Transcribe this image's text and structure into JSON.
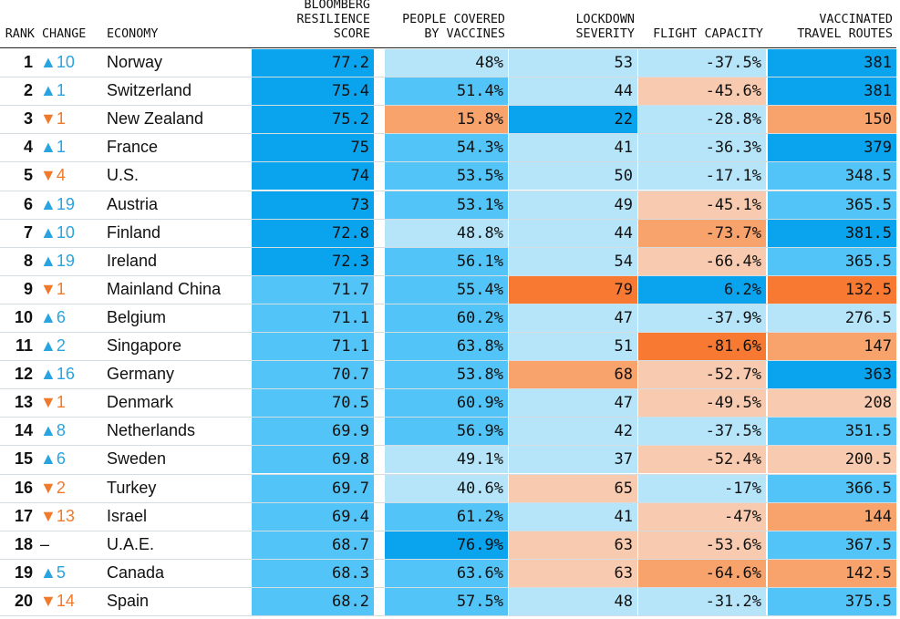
{
  "colors": {
    "c0": "#0aa3ee",
    "c1": "#53c4f7",
    "c2": "#b6e5fa",
    "c3": "#f8cbb0",
    "c4": "#f8a26c",
    "c5": "#f87a32"
  },
  "headers": {
    "rank": "RANK",
    "change": "CHANGE",
    "economy": "ECONOMY",
    "score": "BLOOMBERG\nRESILIENCE\nSCORE",
    "vaccines": "PEOPLE COVERED\nBY VACCINES",
    "lockdown": "LOCKDOWN\nSEVERITY",
    "flight": "FLIGHT CAPACITY",
    "routes": "VACCINATED\nTRAVEL ROUTES"
  },
  "chart_data": {
    "type": "table",
    "columns": [
      "RANK",
      "CHANGE",
      "ECONOMY",
      "BLOOMBERG RESILIENCE SCORE",
      "PEOPLE COVERED BY VACCINES",
      "LOCKDOWN SEVERITY",
      "FLIGHT CAPACITY",
      "VACCINATED TRAVEL ROUTES"
    ],
    "rows": [
      {
        "rank": "1",
        "change": "▲10",
        "dir": "up",
        "economy": "Norway",
        "score": "77.2",
        "vaccines": "48%",
        "lockdown": "53",
        "flight": "-37.5%",
        "routes": "381",
        "c": [
          "c0",
          "c2",
          "c2",
          "c2",
          "c0"
        ]
      },
      {
        "rank": "2",
        "change": "▲1",
        "dir": "up",
        "economy": "Switzerland",
        "score": "75.4",
        "vaccines": "51.4%",
        "lockdown": "44",
        "flight": "-45.6%",
        "routes": "381",
        "c": [
          "c0",
          "c1",
          "c2",
          "c3",
          "c0"
        ]
      },
      {
        "rank": "3",
        "change": "▼1",
        "dir": "down",
        "economy": "New Zealand",
        "score": "75.2",
        "vaccines": "15.8%",
        "lockdown": "22",
        "flight": "-28.8%",
        "routes": "150",
        "c": [
          "c0",
          "c4",
          "c0",
          "c2",
          "c4"
        ]
      },
      {
        "rank": "4",
        "change": "▲1",
        "dir": "up",
        "economy": "France",
        "score": "75",
        "vaccines": "54.3%",
        "lockdown": "41",
        "flight": "-36.3%",
        "routes": "379",
        "c": [
          "c0",
          "c1",
          "c2",
          "c2",
          "c0"
        ]
      },
      {
        "rank": "5",
        "change": "▼4",
        "dir": "down",
        "economy": "U.S.",
        "score": "74",
        "vaccines": "53.5%",
        "lockdown": "50",
        "flight": "-17.1%",
        "routes": "348.5",
        "c": [
          "c0",
          "c1",
          "c2",
          "c2",
          "c1"
        ]
      },
      {
        "rank": "6",
        "change": "▲19",
        "dir": "up",
        "economy": "Austria",
        "score": "73",
        "vaccines": "53.1%",
        "lockdown": "49",
        "flight": "-45.1%",
        "routes": "365.5",
        "c": [
          "c0",
          "c1",
          "c2",
          "c3",
          "c1"
        ]
      },
      {
        "rank": "7",
        "change": "▲10",
        "dir": "up",
        "economy": "Finland",
        "score": "72.8",
        "vaccines": "48.8%",
        "lockdown": "44",
        "flight": "-73.7%",
        "routes": "381.5",
        "c": [
          "c0",
          "c2",
          "c2",
          "c4",
          "c0"
        ]
      },
      {
        "rank": "8",
        "change": "▲19",
        "dir": "up",
        "economy": "Ireland",
        "score": "72.3",
        "vaccines": "56.1%",
        "lockdown": "54",
        "flight": "-66.4%",
        "routes": "365.5",
        "c": [
          "c0",
          "c1",
          "c2",
          "c3",
          "c1"
        ]
      },
      {
        "rank": "9",
        "change": "▼1",
        "dir": "down",
        "economy": "Mainland China",
        "score": "71.7",
        "vaccines": "55.4%",
        "lockdown": "79",
        "flight": "6.2%",
        "routes": "132.5",
        "c": [
          "c1",
          "c1",
          "c5",
          "c0",
          "c5"
        ]
      },
      {
        "rank": "10",
        "change": "▲6",
        "dir": "up",
        "economy": "Belgium",
        "score": "71.1",
        "vaccines": "60.2%",
        "lockdown": "47",
        "flight": "-37.9%",
        "routes": "276.5",
        "c": [
          "c1",
          "c1",
          "c2",
          "c2",
          "c2"
        ]
      },
      {
        "rank": "11",
        "change": "▲2",
        "dir": "up",
        "economy": "Singapore",
        "score": "71.1",
        "vaccines": "63.8%",
        "lockdown": "51",
        "flight": "-81.6%",
        "routes": "147",
        "c": [
          "c1",
          "c1",
          "c2",
          "c5",
          "c4"
        ]
      },
      {
        "rank": "12",
        "change": "▲16",
        "dir": "up",
        "economy": "Germany",
        "score": "70.7",
        "vaccines": "53.8%",
        "lockdown": "68",
        "flight": "-52.7%",
        "routes": "363",
        "c": [
          "c1",
          "c1",
          "c4",
          "c3",
          "c0"
        ]
      },
      {
        "rank": "13",
        "change": "▼1",
        "dir": "down",
        "economy": "Denmark",
        "score": "70.5",
        "vaccines": "60.9%",
        "lockdown": "47",
        "flight": "-49.5%",
        "routes": "208",
        "c": [
          "c1",
          "c1",
          "c2",
          "c3",
          "c3"
        ]
      },
      {
        "rank": "14",
        "change": "▲8",
        "dir": "up",
        "economy": "Netherlands",
        "score": "69.9",
        "vaccines": "56.9%",
        "lockdown": "42",
        "flight": "-37.5%",
        "routes": "351.5",
        "c": [
          "c1",
          "c1",
          "c2",
          "c2",
          "c1"
        ]
      },
      {
        "rank": "15",
        "change": "▲6",
        "dir": "up",
        "economy": "Sweden",
        "score": "69.8",
        "vaccines": "49.1%",
        "lockdown": "37",
        "flight": "-52.4%",
        "routes": "200.5",
        "c": [
          "c1",
          "c2",
          "c2",
          "c3",
          "c3"
        ]
      },
      {
        "rank": "16",
        "change": "▼2",
        "dir": "down",
        "economy": "Turkey",
        "score": "69.7",
        "vaccines": "40.6%",
        "lockdown": "65",
        "flight": "-17%",
        "routes": "366.5",
        "c": [
          "c1",
          "c2",
          "c3",
          "c2",
          "c1"
        ]
      },
      {
        "rank": "17",
        "change": "▼13",
        "dir": "down",
        "economy": "Israel",
        "score": "69.4",
        "vaccines": "61.2%",
        "lockdown": "41",
        "flight": "-47%",
        "routes": "144",
        "c": [
          "c1",
          "c1",
          "c2",
          "c3",
          "c4"
        ]
      },
      {
        "rank": "18",
        "change": "–",
        "dir": "none",
        "economy": "U.A.E.",
        "score": "68.7",
        "vaccines": "76.9%",
        "lockdown": "63",
        "flight": "-53.6%",
        "routes": "367.5",
        "c": [
          "c1",
          "c0",
          "c3",
          "c3",
          "c1"
        ]
      },
      {
        "rank": "19",
        "change": "▲5",
        "dir": "up",
        "economy": "Canada",
        "score": "68.3",
        "vaccines": "63.6%",
        "lockdown": "63",
        "flight": "-64.6%",
        "routes": "142.5",
        "c": [
          "c1",
          "c1",
          "c3",
          "c4",
          "c4"
        ]
      },
      {
        "rank": "20",
        "change": "▼14",
        "dir": "down",
        "economy": "Spain",
        "score": "68.2",
        "vaccines": "57.5%",
        "lockdown": "48",
        "flight": "-31.2%",
        "routes": "375.5",
        "c": [
          "c1",
          "c1",
          "c2",
          "c2",
          "c1"
        ]
      }
    ]
  }
}
